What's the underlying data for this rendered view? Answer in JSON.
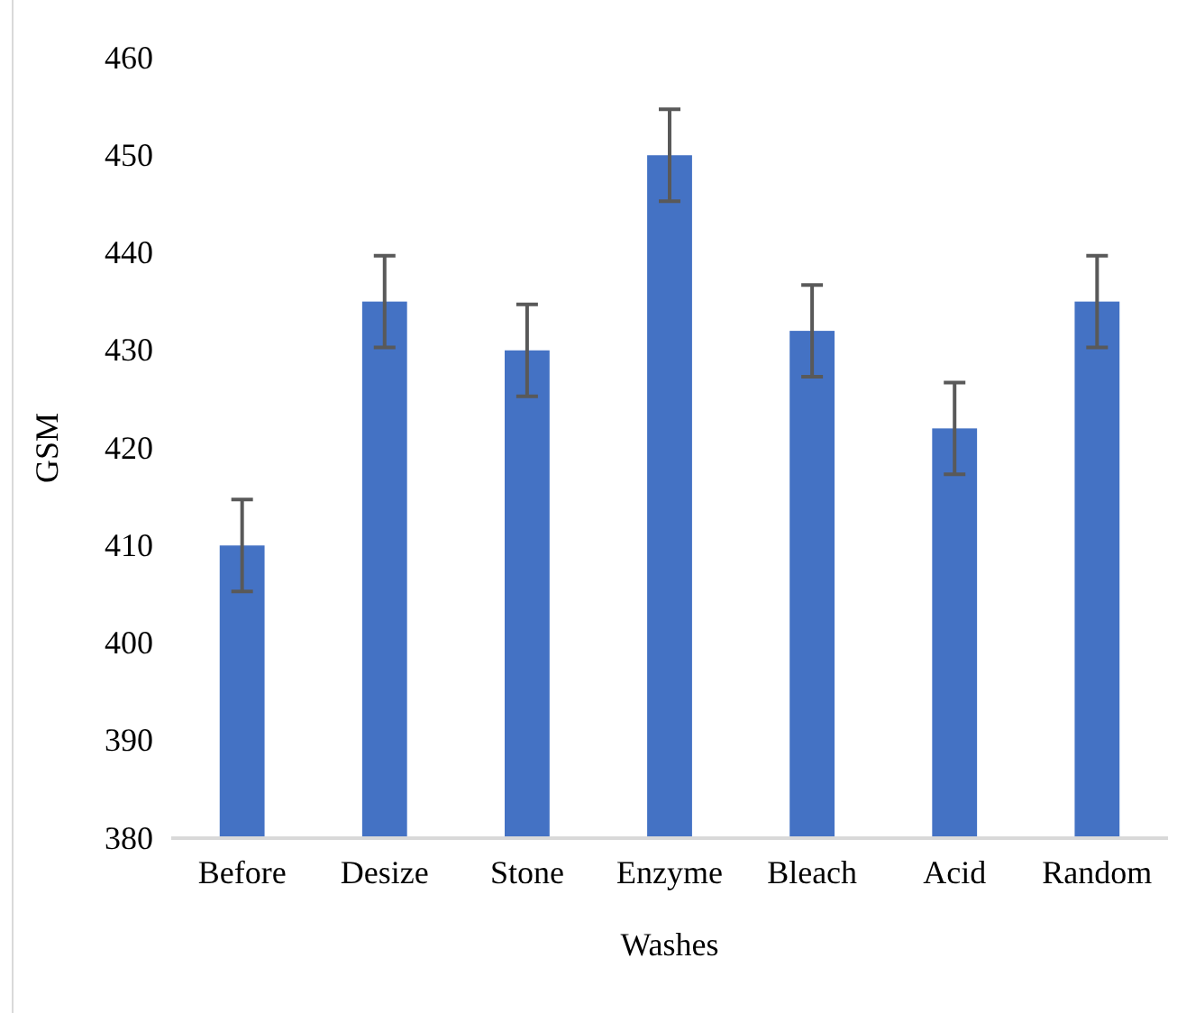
{
  "chart_data": {
    "type": "bar",
    "xlabel": "Washes",
    "ylabel": "GSM",
    "categories": [
      "Before",
      "Desize",
      "Stone",
      "Enzyme",
      "Bleach",
      "Acid",
      "Random"
    ],
    "values": [
      410,
      435,
      430,
      450,
      432,
      422,
      435
    ],
    "errors": [
      4.7,
      4.7,
      4.7,
      4.7,
      4.7,
      4.7,
      4.7
    ],
    "color": "#4472c4",
    "ylim": [
      380,
      460
    ],
    "yticks": [
      380,
      390,
      400,
      410,
      420,
      430,
      440,
      450,
      460
    ],
    "grid": false
  }
}
